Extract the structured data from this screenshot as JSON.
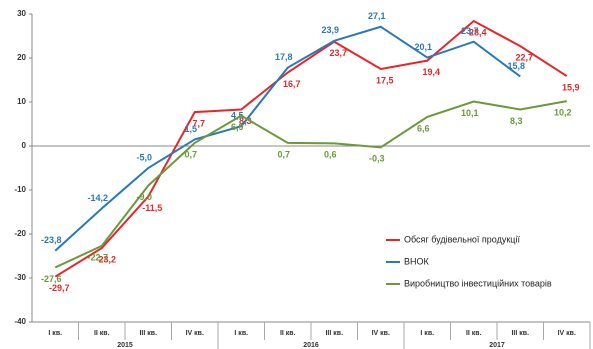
{
  "chart_data": {
    "type": "line",
    "categories": [
      "I кв.",
      "II кв.",
      "III кв.",
      "IV кв.",
      "I кв.",
      "II кв.",
      "III кв.",
      "IV кв.",
      "I кв.",
      "II кв.",
      "III кв.",
      "IV кв."
    ],
    "x_groups": [
      "2015",
      "2016",
      "2017"
    ],
    "ylim": [
      -40,
      30
    ],
    "yticks": [
      -40,
      -30,
      -20,
      -10,
      0,
      10,
      20,
      30
    ],
    "legend": "right",
    "series": [
      {
        "name": "Обсяг будівельної продукції",
        "color": "#e8262a",
        "values": [
          -29.7,
          -23.2,
          -11.5,
          7.7,
          8.3,
          16.7,
          23.7,
          17.5,
          19.4,
          28.4,
          22.7,
          15.9
        ],
        "value_labels": [
          "-29,7",
          "-23,2",
          "-11,5",
          "7,7",
          "8,3",
          "16,7",
          "23,7",
          "17,5",
          "19,4",
          "28,4",
          "22,7",
          "15,9"
        ]
      },
      {
        "name": "ВНОК",
        "color": "#2a7ab8",
        "values": [
          -23.8,
          -14.2,
          -5.0,
          1.5,
          4.5,
          17.8,
          23.9,
          27.1,
          20.1,
          23.7,
          15.8,
          null
        ],
        "value_labels": [
          "-23,8",
          "-14,2",
          "-5,0",
          "1,5",
          "4,5",
          "17,8",
          "23,9",
          "27,1",
          "20,1",
          "23,7",
          "15,8",
          null
        ]
      },
      {
        "name": "Виробництво інвестиційних товарів",
        "color": "#6a9a3a",
        "values": [
          -27.6,
          -22.7,
          -9.0,
          0.7,
          6.9,
          0.7,
          0.6,
          -0.3,
          6.6,
          10.1,
          8.3,
          10.2
        ],
        "value_labels": [
          "-27,6",
          "-22,7",
          "-9,0",
          "0,7",
          "6,9",
          "0,7",
          "0,6",
          "-0,3",
          "6,6",
          "10,1",
          "8,3",
          "10,2"
        ]
      }
    ]
  }
}
